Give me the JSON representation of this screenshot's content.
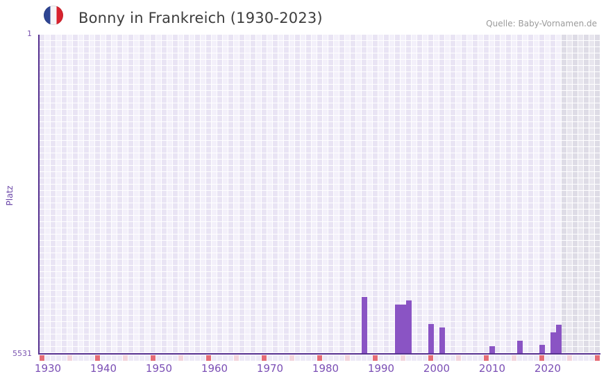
{
  "header": {
    "title": "Bonny in Frankreich (1930-2023)",
    "source": "Quelle: Baby-Vornamen.de",
    "flag_icon": "france-flag-circle"
  },
  "chart_data": {
    "type": "bar",
    "title": "Bonny in Frankreich (1930-2023)",
    "xlabel": "",
    "ylabel": "Platz",
    "y_axis": {
      "top_tick": "1",
      "bottom_tick": "5531",
      "min": 1,
      "max": 5531,
      "inverted": true
    },
    "x_axis": {
      "tick_labels": [
        "1930",
        "1940",
        "1950",
        "1960",
        "1970",
        "1980",
        "1990",
        "2000",
        "2010",
        "2020"
      ],
      "display_range": [
        1929,
        2029
      ],
      "data_range": [
        1930,
        2023
      ],
      "no_data_from": 2023
    },
    "bars": [
      {
        "year": 1987,
        "rank": 4557
      },
      {
        "year": 1993,
        "rank": 4690
      },
      {
        "year": 1994,
        "rank": 4690
      },
      {
        "year": 1995,
        "rank": 4617
      },
      {
        "year": 1999,
        "rank": 5026
      },
      {
        "year": 2001,
        "rank": 5086
      },
      {
        "year": 2010,
        "rank": 5411
      },
      {
        "year": 2015,
        "rank": 5315
      },
      {
        "year": 2019,
        "rank": 5387
      },
      {
        "year": 2021,
        "rank": 5170
      },
      {
        "year": 2022,
        "rank": 5038
      }
    ],
    "tick_strip": {
      "red_years_ending_in": 9,
      "pink_years_ending_in": 4
    },
    "legend": null,
    "grid": "on",
    "colors": {
      "bar": "#8a54c4",
      "axis": "#55308f",
      "tick_label": "#7b4fb5",
      "grid_cell_light": "#f3f0fa",
      "grid_cell_dark": "#e9e4f4",
      "nodata_cell_light": "#e8e6ee",
      "nodata_cell_dark": "#dedce6",
      "strip_cell": "#edeaf6",
      "strip_decade_red": "#e56c76",
      "strip_half_decade_pink": "#f3d4dc",
      "flag_blue": "#2e4593",
      "flag_red": "#d8232e",
      "title_text": "#3d3d3d",
      "source_text": "#9b9b9b"
    }
  }
}
